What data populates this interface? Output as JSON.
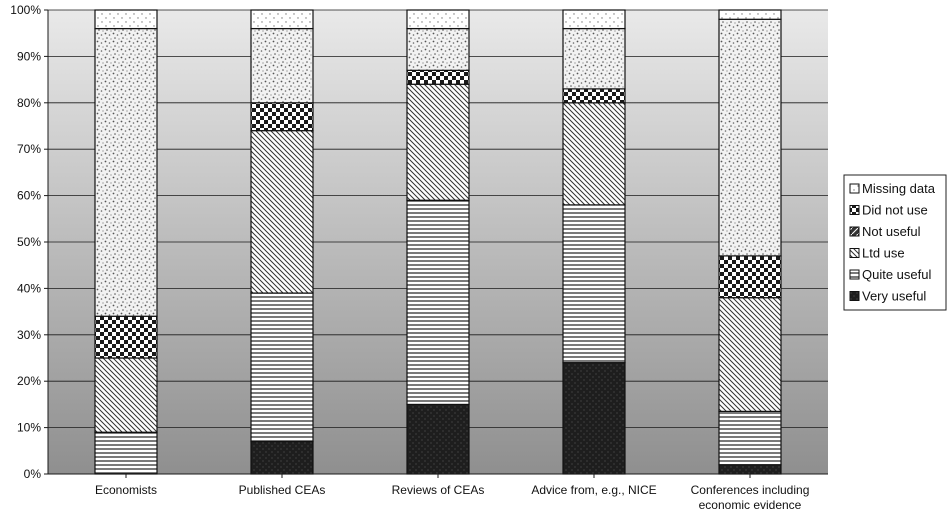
{
  "chart_data": {
    "type": "bar",
    "stacked": true,
    "title": "",
    "xlabel": "",
    "ylabel": "",
    "ylim": [
      0,
      100
    ],
    "y_ticks": [
      "0%",
      "10%",
      "20%",
      "30%",
      "40%",
      "50%",
      "60%",
      "70%",
      "80%",
      "90%",
      "100%"
    ],
    "grid": true,
    "legend_position": "right",
    "categories": [
      [
        "Economists"
      ],
      [
        "Published CEAs"
      ],
      [
        "Reviews of CEAs"
      ],
      [
        "Advice from, e.g., NICE"
      ],
      [
        "Conferences including",
        "economic evidence"
      ]
    ],
    "series": [
      {
        "name": "Very useful",
        "pattern": "solid-dark",
        "values": [
          0,
          7,
          15,
          24,
          2
        ]
      },
      {
        "name": "Quite useful",
        "pattern": "horizontal",
        "values": [
          9,
          32,
          44,
          34,
          11.5
        ]
      },
      {
        "name": "Ltd use",
        "pattern": "diagonal",
        "values": [
          16,
          35,
          25,
          22,
          24.5
        ]
      },
      {
        "name": "Not useful",
        "pattern": "dark-check",
        "values": [
          0,
          0,
          0,
          0,
          0
        ]
      },
      {
        "name": "Did not use",
        "pattern": "checker",
        "values": [
          9,
          6,
          3,
          3,
          9
        ]
      },
      {
        "name": "",
        "pattern": "speckled",
        "values": [
          62,
          16,
          9,
          13,
          51
        ]
      },
      {
        "name": "Missing data",
        "pattern": "dotted-light",
        "values": [
          4,
          4,
          4,
          4,
          2
        ]
      }
    ],
    "legend": [
      "Missing data",
      "Did not use",
      "Not useful",
      "Ltd use",
      "Quite useful",
      "Very useful"
    ]
  }
}
